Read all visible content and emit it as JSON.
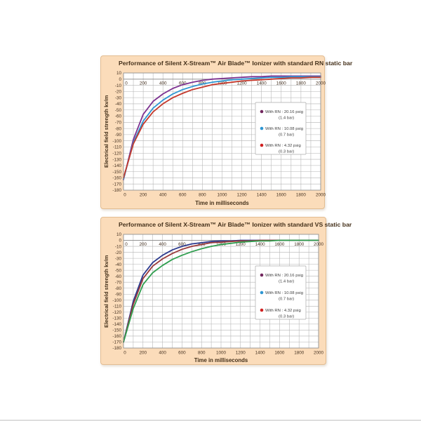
{
  "styles": {
    "card_bg": "#fbdcba",
    "card_border": "#e3bd92",
    "plot_bg": "#ffffff",
    "plot_border": "#8c8c8c",
    "grid_color": "#b3b3b3",
    "axis_color": "#8a8a8a",
    "text_color": "#463221",
    "legend_bg": "#ffffff",
    "legend_border": "#ababab",
    "legend_text": "#3f3f3f"
  },
  "chart_data": [
    {
      "type": "line",
      "title": "Performance of Silent X-Stream™ Air Blade™ Ionizer with standard RN static bar",
      "xlabel": "Time in milliseconds",
      "ylabel": "Electrical field strength kv/m",
      "xlim": [
        0,
        2000
      ],
      "ylim": [
        -180,
        10
      ],
      "grid": true,
      "x_grid_step": 100,
      "x_ticks": [
        0,
        200,
        400,
        600,
        800,
        1000,
        1200,
        1400,
        1600,
        1800,
        2000
      ],
      "x_tick_rows": [
        "at-zero-line",
        "below-plot"
      ],
      "y_ticks": [
        10,
        0,
        -10,
        -20,
        -30,
        -40,
        -50,
        -60,
        -70,
        -80,
        -90,
        -100,
        -110,
        -120,
        -130,
        -140,
        -150,
        -160,
        -170,
        -180
      ],
      "legend_position": "right-middle",
      "x": [
        0,
        100,
        200,
        300,
        400,
        500,
        600,
        700,
        800,
        900,
        1000,
        1100,
        1200,
        1300,
        1400,
        1500,
        1600,
        1700,
        1800,
        1900,
        2000
      ],
      "series": [
        {
          "legend_line1": "With RN : 20.16 psig",
          "legend_line2": "(1.4 bar)",
          "color": "#7d3190",
          "marker_color": "#72275e",
          "values": [
            -163,
            -98,
            -57,
            -36,
            -24,
            -15,
            -9,
            -5,
            -2,
            0,
            1,
            2,
            3,
            4,
            4,
            5,
            5,
            5,
            5,
            5,
            5
          ]
        },
        {
          "legend_line1": "With RN : 10.08 psig",
          "legend_line2": "(0.7 bar)",
          "color": "#2e96d2",
          "marker_color": "#2e96d2",
          "values": [
            -162,
            -103,
            -68,
            -47,
            -34,
            -24,
            -17,
            -12,
            -8,
            -5,
            -3,
            -1,
            0,
            1,
            2,
            3,
            3,
            4,
            4,
            4,
            4
          ]
        },
        {
          "legend_line1": "With RN : 4.32 psig",
          "legend_line2": "(0.3 bar)",
          "color": "#c4382b",
          "marker_color": "#d02020",
          "values": [
            -160,
            -105,
            -73,
            -53,
            -40,
            -30,
            -23,
            -17,
            -13,
            -9,
            -7,
            -5,
            -3,
            -2,
            -1,
            0,
            1,
            2,
            2,
            3,
            3
          ]
        }
      ]
    },
    {
      "type": "line",
      "title": "Performance of Silent X-Stream™ Air Blade™ Ionizer with standard VS static bar",
      "xlabel": "Time in milliseconds",
      "ylabel": "Electrical field strength kv/m",
      "xlim": [
        0,
        2000
      ],
      "ylim": [
        -180,
        10
      ],
      "grid": true,
      "x_grid_step": 100,
      "x_ticks": [
        0,
        200,
        400,
        600,
        800,
        1000,
        1200,
        1400,
        1600,
        1800,
        2000
      ],
      "x_tick_rows": [
        "at-zero-line",
        "below-plot"
      ],
      "y_ticks": [
        10,
        0,
        -10,
        -20,
        -30,
        -40,
        -50,
        -60,
        -70,
        -80,
        -90,
        -100,
        -110,
        -120,
        -130,
        -140,
        -150,
        -160,
        -170,
        -180
      ],
      "legend_position": "right-middle",
      "x": [
        0,
        100,
        200,
        300,
        400,
        500,
        600,
        700,
        800,
        900,
        1000,
        1100,
        1200,
        1300,
        1400,
        1500,
        1600,
        1700,
        1800,
        1900,
        2000
      ],
      "series": [
        {
          "legend_line1": "With RN : 20.16 psig",
          "legend_line2": "(1.4 bar)",
          "color": "#2c3a8e",
          "marker_color": "#72275e",
          "values": [
            -170,
            -102,
            -58,
            -37,
            -25,
            -16,
            -10,
            -6,
            -4,
            -2,
            -1,
            -1,
            0,
            0,
            0,
            0,
            0,
            0,
            0,
            0,
            0
          ]
        },
        {
          "legend_line1": "With RN : 10.08 psig",
          "legend_line2": "(0.7 bar)",
          "color": "#993a3a",
          "marker_color": "#2e96d2",
          "values": [
            -170,
            -107,
            -64,
            -43,
            -31,
            -22,
            -15,
            -10,
            -7,
            -4,
            -3,
            -2,
            -1,
            -1,
            0,
            0,
            0,
            0,
            0,
            0,
            0
          ]
        },
        {
          "legend_line1": "With RN : 4.32 psig",
          "legend_line2": "(0.3 bar)",
          "color": "#2f9e4f",
          "marker_color": "#d02020",
          "values": [
            -170,
            -114,
            -74,
            -54,
            -42,
            -32,
            -25,
            -19,
            -14,
            -10,
            -7,
            -5,
            -3,
            -2,
            -1,
            -1,
            0,
            0,
            0,
            0,
            0
          ]
        }
      ]
    }
  ]
}
